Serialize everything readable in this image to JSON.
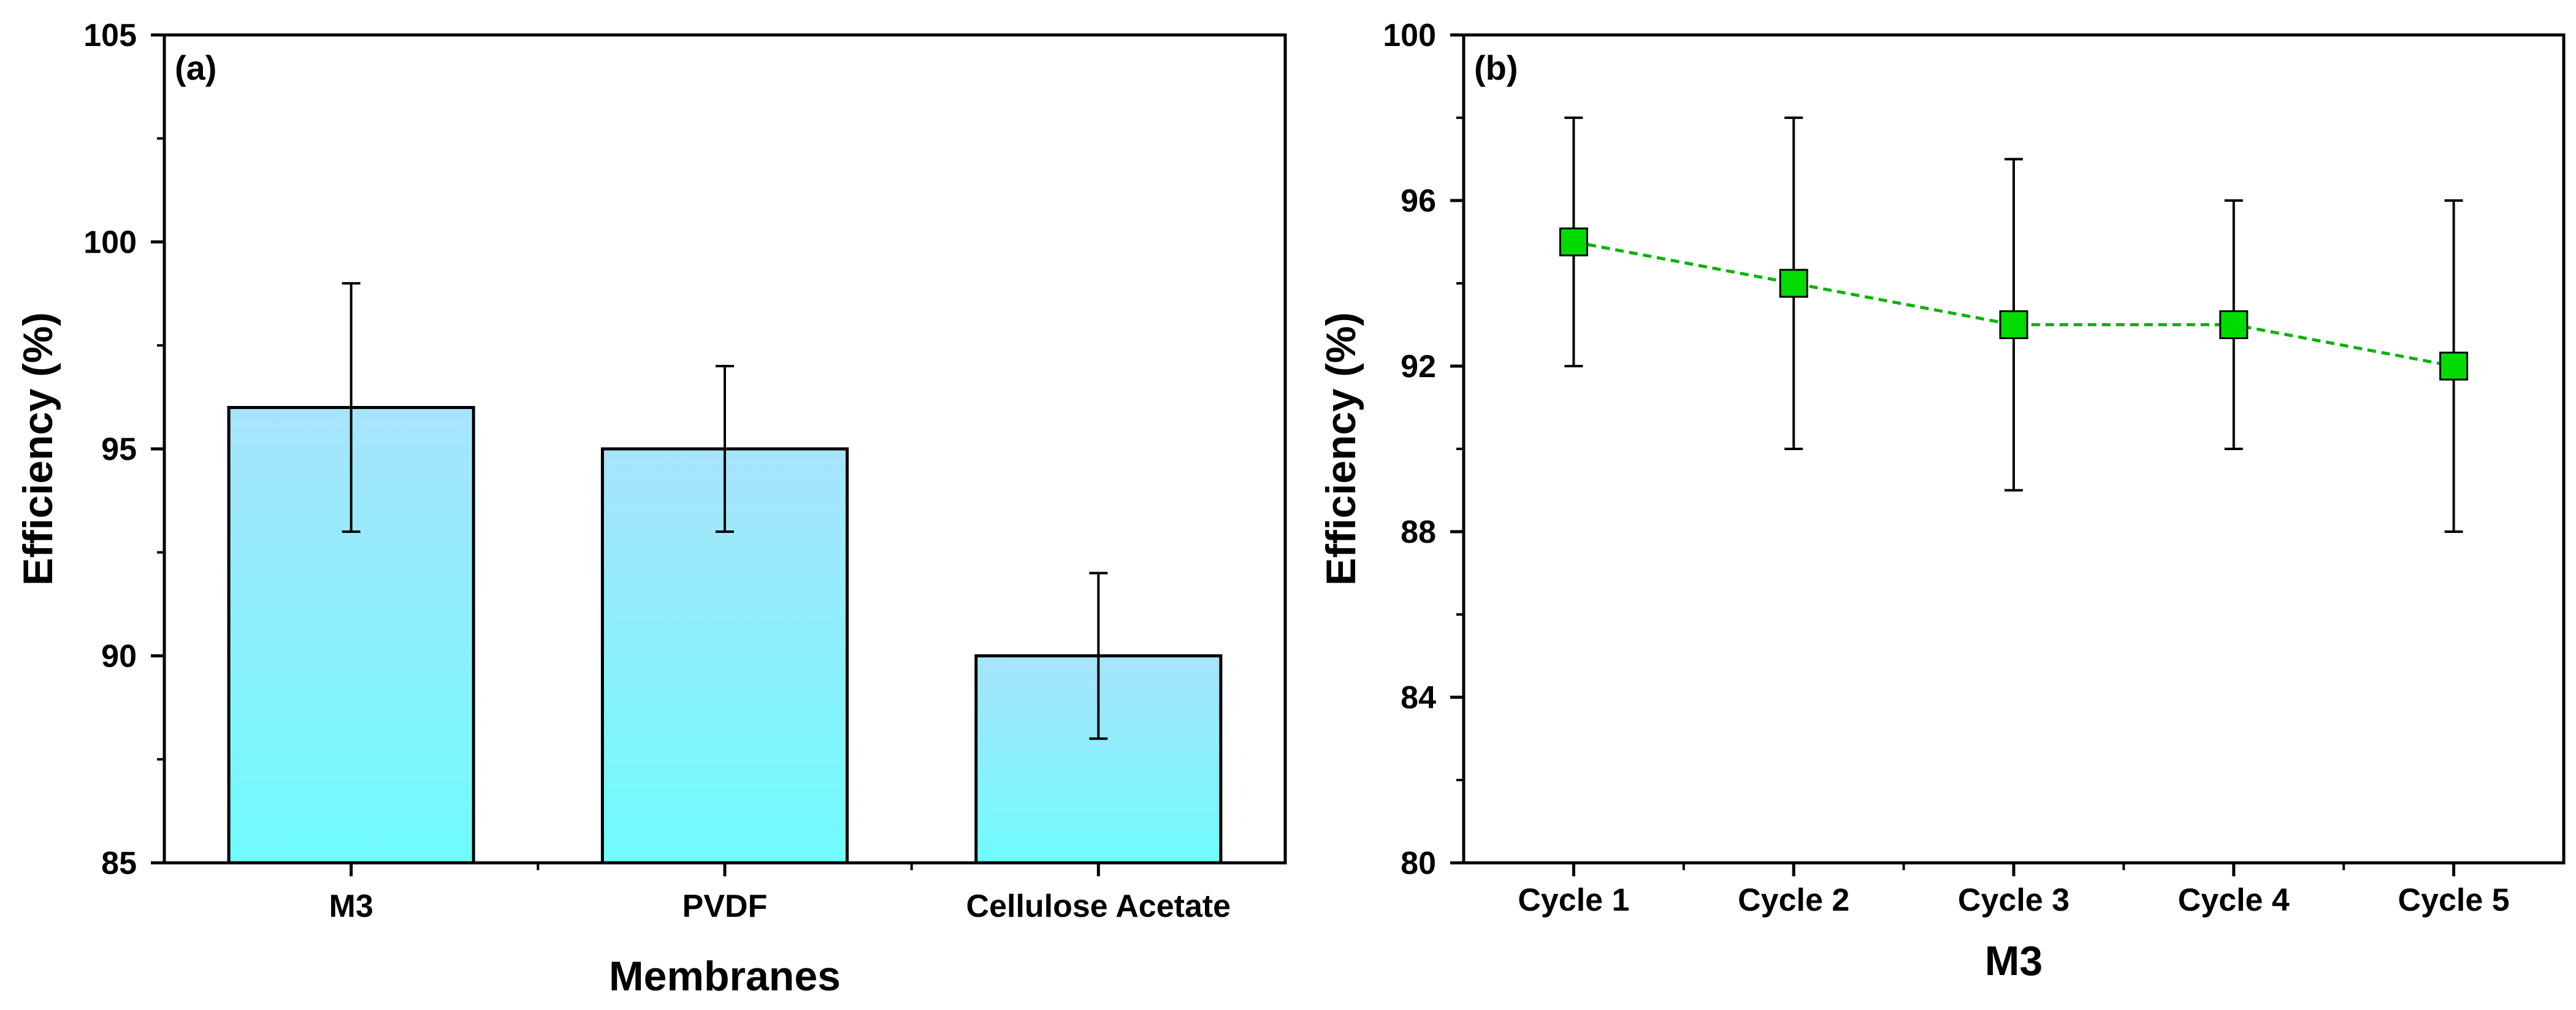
{
  "chart_data": [
    {
      "type": "bar",
      "panel_label": "(a)",
      "xlabel": "Membranes",
      "ylabel": "Efficiency (%)",
      "categories": [
        "M3",
        "PVDF",
        "Cellulose Acetate"
      ],
      "values": [
        96,
        95,
        90
      ],
      "errors_low": [
        93,
        93,
        88
      ],
      "errors_high": [
        99,
        97,
        92
      ],
      "ylim": [
        85,
        105
      ],
      "yticks": [
        "85",
        "90",
        "95",
        "100",
        "105"
      ],
      "bar_color_top": "#a8e4fb",
      "bar_color_bottom": "#6ffcfc",
      "grid": false
    },
    {
      "type": "line",
      "panel_label": "(b)",
      "xlabel": "M3",
      "ylabel": "Efficiency (%)",
      "categories": [
        "Cycle 1",
        "Cycle 2",
        "Cycle 3",
        "Cycle 4",
        "Cycle 5"
      ],
      "values": [
        95,
        94,
        93,
        93,
        92
      ],
      "errors_low": [
        92,
        90,
        89,
        90,
        88
      ],
      "errors_high": [
        98,
        98,
        97,
        96,
        96
      ],
      "ylim": [
        80,
        100
      ],
      "yticks": [
        "80",
        "84",
        "88",
        "92",
        "96",
        "100"
      ],
      "line_color": "#00b400",
      "marker_color": "#00dc00",
      "line_style": "dashed",
      "grid": false
    }
  ]
}
